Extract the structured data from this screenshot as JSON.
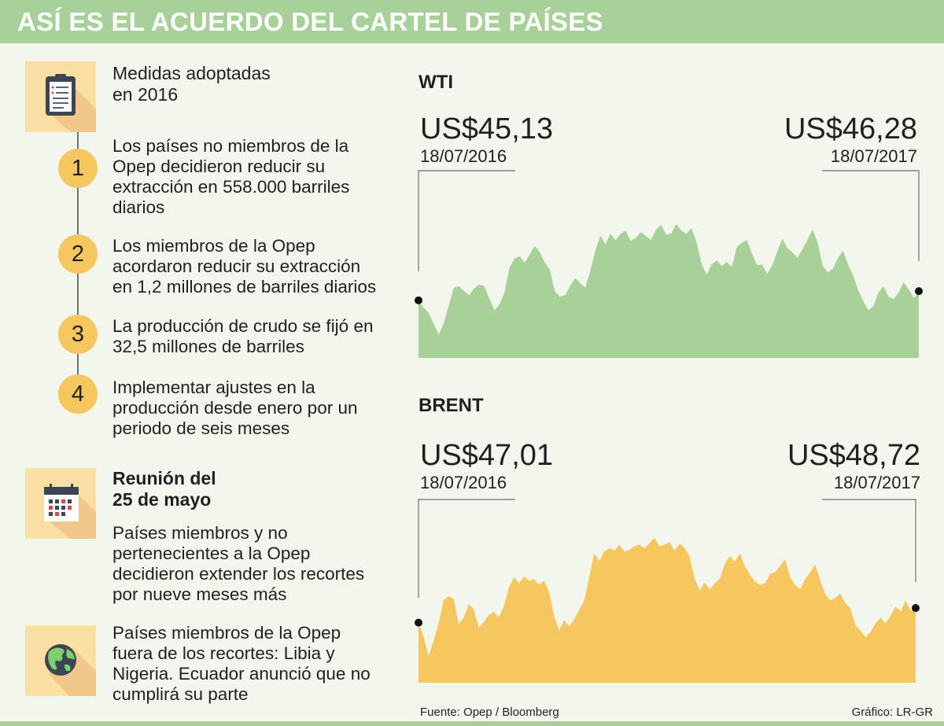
{
  "header": {
    "title": "ASÍ ES EL ACUERDO DEL CARTEL DE PAÍSES"
  },
  "left_panel": {
    "section1": {
      "icon": "clipboard-icon",
      "title_lines": [
        "Medidas adoptadas",
        "en 2016"
      ],
      "items": [
        {
          "number": "1",
          "lines": [
            "Los países no miembros de la",
            "Opep decidieron reducir su",
            "extracción en 558.000 barriles",
            "diarios"
          ]
        },
        {
          "number": "2",
          "lines": [
            "Los miembros de la Opep",
            "acordaron reducir su extracción",
            "en 1,2 millones de barriles diarios"
          ]
        },
        {
          "number": "3",
          "lines": [
            "La producción de crudo se fijó en",
            "32,5 millones de barriles"
          ]
        },
        {
          "number": "4",
          "lines": [
            "Implementar ajustes en la",
            "producción desde enero por un",
            "periodo de seis meses"
          ]
        }
      ]
    },
    "section2": {
      "icon": "calendar-icon",
      "title_lines": [
        "Reunión del",
        "25 de mayo"
      ],
      "body_lines": [
        "Países miembros y no",
        "pertenecientes a la Opep",
        "decidieron extender los recortes",
        "por nueve meses más"
      ]
    },
    "section3": {
      "icon": "globe-icon",
      "body_lines": [
        "Países miembros de la Opep",
        "fuera de los recortes: Libia y",
        "Nigeria. Ecuador anunció que no",
        "cumplirá su parte"
      ]
    }
  },
  "footer": {
    "source": "Fuente: Opep / Bloomberg",
    "credit": "Gráfico: LR-GR"
  },
  "colors": {
    "banner": "#a8d199",
    "wti_fill": "#a8d199",
    "brent_fill": "#f5c75e",
    "icon_bg": "#fbe0a3",
    "circle": "#f5c75e",
    "background": "#f2f6ec"
  },
  "chart_data": [
    {
      "type": "area",
      "title": "WTI",
      "start": {
        "price": "US$45,13",
        "date": "18/07/2016",
        "value": 45.13
      },
      "end": {
        "price": "US$46,28",
        "date": "18/07/2017",
        "value": 46.28
      },
      "ylim": [
        38,
        58
      ],
      "values": [
        45.13,
        44.2,
        43.6,
        42.2,
        40.9,
        42.3,
        44.5,
        46.7,
        46.9,
        46.3,
        45.8,
        46.6,
        47.1,
        46.9,
        45.4,
        43.9,
        44.6,
        46.1,
        49.2,
        50.3,
        50.6,
        49.8,
        50.8,
        51.9,
        51.1,
        49.8,
        48.9,
        46.2,
        45.6,
        45.8,
        46.9,
        47.9,
        47.3,
        46.7,
        48.8,
        51.3,
        53.2,
        52.1,
        53.4,
        52.6,
        53.4,
        53.8,
        52.5,
        52.9,
        53.6,
        53.1,
        52.6,
        53.9,
        54.5,
        53.3,
        53.4,
        54.6,
        53.8,
        53.4,
        54.1,
        52.4,
        49.7,
        48.3,
        49.6,
        50.1,
        49.4,
        49.9,
        49.3,
        51.8,
        52.3,
        52.6,
        50.9,
        49.5,
        49.6,
        48.4,
        49.5,
        51.2,
        52.8,
        51.6,
        51.1,
        50.4,
        51.5,
        52.7,
        53.9,
        52.3,
        49.4,
        48.6,
        49.1,
        50.4,
        51.3,
        49.6,
        48.2,
        46.4,
        45.1,
        43.9,
        44.4,
        46.1,
        46.9,
        45.6,
        45.3,
        46.1,
        47.4,
        46.5,
        45.4,
        46.28
      ]
    },
    {
      "type": "area",
      "title": "BRENT",
      "start": {
        "price": "US$47,01",
        "date": "18/07/2016",
        "value": 47.01
      },
      "end": {
        "price": "US$48,72",
        "date": "18/07/2017",
        "value": 48.72
      },
      "ylim": [
        40,
        60
      ],
      "values": [
        47.01,
        45.4,
        43.1,
        44.9,
        46.9,
        49.6,
        50.1,
        49.8,
        46.8,
        47.6,
        49.2,
        48.6,
        46.4,
        47.1,
        47.9,
        48.3,
        47.6,
        48.9,
        51.1,
        52.3,
        51.6,
        52.4,
        51.9,
        52.1,
        51.4,
        51.9,
        50.6,
        47.8,
        46.1,
        47.3,
        46.6,
        47.4,
        48.5,
        49.6,
        52.4,
        55.1,
        54.2,
        55.3,
        55.7,
        55.4,
        56.1,
        55.3,
        55.5,
        55.9,
        56.1,
        55.7,
        56.3,
        56.9,
        55.9,
        56.1,
        56.4,
        55.4,
        56.2,
        55.7,
        54.7,
        52.1,
        50.8,
        51.7,
        50.9,
        51.6,
        52.1,
        53.9,
        54.8,
        54.1,
        55.1,
        53.6,
        52.6,
        51.8,
        51.4,
        51.6,
        52.7,
        52.9,
        53.6,
        54.4,
        52.3,
        51.4,
        50.9,
        52.1,
        52.9,
        53.8,
        51.9,
        50.3,
        49.6,
        49.9,
        50.4,
        49.3,
        48.7,
        46.7,
        46.1,
        45.3,
        45.9,
        46.9,
        47.6,
        46.9,
        47.8,
        48.9,
        48.3,
        49.6,
        48.4,
        48.72
      ]
    }
  ]
}
